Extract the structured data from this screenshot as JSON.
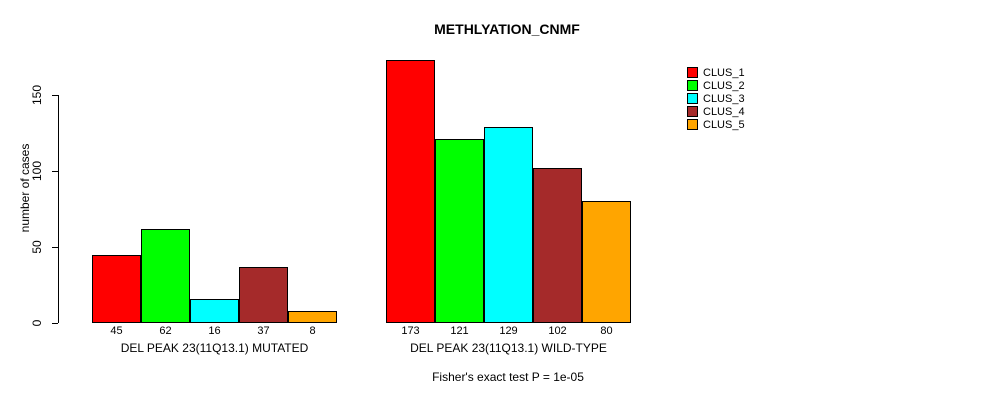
{
  "title": "METHLYATION_CNMF",
  "footer": "Fisher's exact test P = 1e-05",
  "chart_data": {
    "type": "bar",
    "title": "METHLYATION_CNMF",
    "xlabel": "",
    "ylabel": "number of cases",
    "ylim": [
      0,
      175
    ],
    "yticks": [
      0,
      50,
      100,
      150
    ],
    "grid": false,
    "legend_position": "right",
    "series_names": [
      "CLUS_1",
      "CLUS_2",
      "CLUS_3",
      "CLUS_4",
      "CLUS_5"
    ],
    "series_colors": [
      "#ff0000",
      "#00ff00",
      "#00ffff",
      "#a52a2a",
      "#ffa500"
    ],
    "groups": [
      {
        "label": "DEL PEAK 23(11Q13.1) MUTATED",
        "values": [
          45,
          62,
          16,
          37,
          8
        ]
      },
      {
        "label": "DEL PEAK 23(11Q13.1) WILD-TYPE",
        "values": [
          173,
          121,
          129,
          102,
          80
        ]
      }
    ],
    "annotation": "Fisher's exact test P = 1e-05"
  }
}
